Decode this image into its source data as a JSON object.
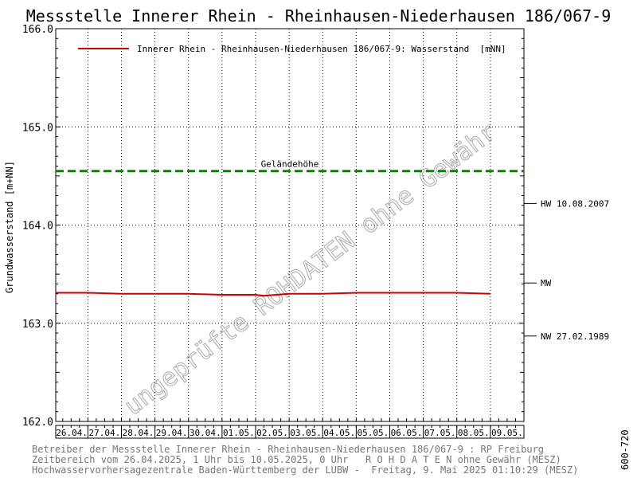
{
  "chart_data": {
    "type": "line",
    "title": "Messstelle Innerer Rhein - Rheinhausen-Niederhausen 186/067-9",
    "ylabel": "Grundwasserstand [m+NN]",
    "ylim": [
      162.0,
      166.0
    ],
    "yticks": [
      "162.0",
      "163.0",
      "164.0",
      "165.0",
      "166.0"
    ],
    "xlim": [
      "2025-04-26T01:00",
      "2025-05-10T00:00"
    ],
    "xticks": [
      "26.04.",
      "27.04.",
      "28.04.",
      "29.04.",
      "30.04.",
      "01.05.",
      "02.05.",
      "03.05.",
      "04.05.",
      "05.05.",
      "06.05.",
      "07.05.",
      "08.05.",
      "09.05."
    ],
    "grid": true,
    "legend_position": "top",
    "series": [
      {
        "name": "Innerer Rhein - Rheinhausen-Niederhausen 186/067-9: Wasserstand  [mNN]",
        "color": "#cc0000",
        "x": [
          "2025-04-26T01:00",
          "2025-04-27T00:00",
          "2025-04-28T00:00",
          "2025-04-29T00:00",
          "2025-04-30T00:00",
          "2025-05-01T00:00",
          "2025-05-02T00:00",
          "2025-05-02T06:00",
          "2025-05-03T00:00",
          "2025-05-04T00:00",
          "2025-05-05T00:00",
          "2025-05-06T00:00",
          "2025-05-07T00:00",
          "2025-05-08T00:00",
          "2025-05-09T00:00"
        ],
        "values": [
          163.31,
          163.31,
          163.3,
          163.3,
          163.3,
          163.29,
          163.29,
          163.28,
          163.3,
          163.3,
          163.31,
          163.31,
          163.31,
          163.31,
          163.3
        ]
      }
    ],
    "reference_lines": [
      {
        "label": "Geländehöhe",
        "value": 164.55,
        "color": "#008800",
        "style": "dashed"
      }
    ],
    "right_markers": [
      {
        "label": "HW 10.08.2007",
        "value": 164.22
      },
      {
        "label": "MW",
        "value": 163.41
      },
      {
        "label": "NW 27.02.1989",
        "value": 162.87
      }
    ],
    "watermark": "ungeprüfte ROHDATEN ohne Gewähr"
  },
  "footer": {
    "line1": "Betreiber der Messstelle Innerer Rhein - Rheinhausen-Niederhausen 186/067-9 : RP Freiburg",
    "line2": "Zeitbereich vom 26.04.2025, 1 Uhr bis 10.05.2025, 0 Uhr   R O H D A T E N ohne Gewähr (MESZ)",
    "line3": "Hochwasservorhersagezentrale Baden-Württemberg der LUBW -  Freitag, 9. Mai 2025 01:10:29 (MESZ)"
  },
  "side_code": "600-720"
}
